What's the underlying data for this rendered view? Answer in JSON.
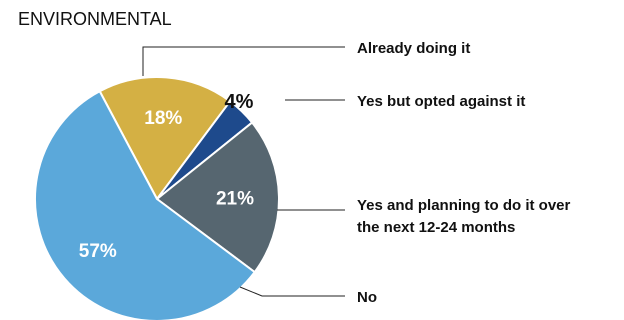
{
  "chart_data": {
    "type": "pie",
    "title": "ENVIRONMENTAL",
    "slices": [
      {
        "label": "Already doing it",
        "value": 18,
        "display": "18%",
        "color": "#d4b044"
      },
      {
        "label": "Yes but opted against it",
        "value": 4,
        "display": "4%",
        "color": "#1e4a8c"
      },
      {
        "label": "Yes and planning to do it over the next 12-24 months",
        "label_lines": [
          "Yes and planning to do it over",
          "the next 12-24 months"
        ],
        "value": 21,
        "display": "21%",
        "color": "#566670"
      },
      {
        "label": "No",
        "value": 57,
        "display": "57%",
        "color": "#5ba8da"
      }
    ]
  }
}
